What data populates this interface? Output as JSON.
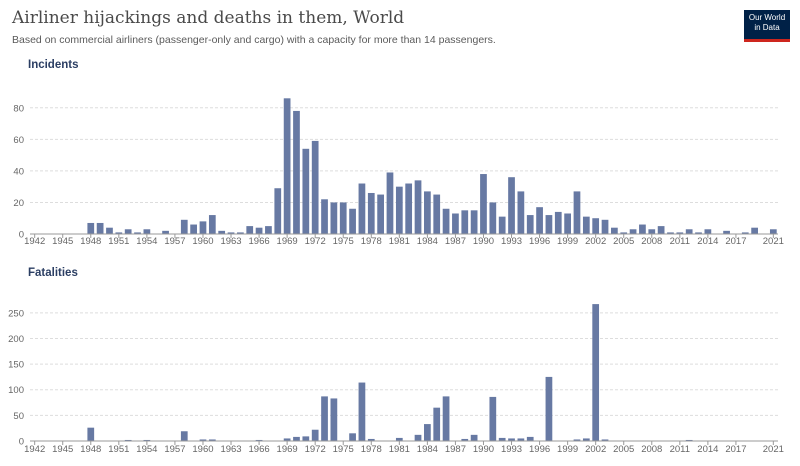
{
  "title": "Airliner hijackings and deaths in them, World",
  "subtitle": "Based on commercial airliners (passenger-only and cargo) with a capacity for more than 14 passengers.",
  "logo": {
    "line1": "Our World",
    "line2": "in Data"
  },
  "colors": {
    "bar": "#6779a3",
    "grid": "#dddddd",
    "axis": "#999999",
    "text": "#666666",
    "panel_title": "#2b3e63"
  },
  "chart_data": [
    {
      "type": "bar",
      "panel_title": "Incidents",
      "x": [
        1942,
        1943,
        1944,
        1945,
        1946,
        1947,
        1948,
        1949,
        1950,
        1951,
        1952,
        1953,
        1954,
        1955,
        1956,
        1957,
        1958,
        1959,
        1960,
        1961,
        1962,
        1963,
        1964,
        1965,
        1966,
        1967,
        1968,
        1969,
        1970,
        1971,
        1972,
        1973,
        1974,
        1975,
        1976,
        1977,
        1978,
        1979,
        1980,
        1981,
        1982,
        1983,
        1984,
        1985,
        1986,
        1987,
        1988,
        1989,
        1990,
        1991,
        1992,
        1993,
        1994,
        1995,
        1996,
        1997,
        1998,
        1999,
        2000,
        2001,
        2002,
        2003,
        2004,
        2005,
        2006,
        2007,
        2008,
        2009,
        2010,
        2011,
        2012,
        2013,
        2014,
        2015,
        2016,
        2017,
        2018,
        2019,
        2020,
        2021
      ],
      "values": [
        0,
        0,
        0,
        0,
        0,
        0,
        7,
        7,
        4,
        1,
        3,
        1,
        3,
        0,
        2,
        0,
        9,
        6,
        8,
        12,
        2,
        1,
        1,
        5,
        4,
        5,
        29,
        86,
        78,
        54,
        59,
        22,
        20,
        20,
        16,
        32,
        26,
        25,
        39,
        30,
        32,
        34,
        27,
        25,
        16,
        13,
        15,
        15,
        38,
        20,
        11,
        36,
        27,
        12,
        17,
        12,
        14,
        13,
        27,
        11,
        10,
        9,
        4,
        1,
        3,
        6,
        3,
        5,
        1,
        1,
        3,
        1,
        3,
        0,
        2,
        0,
        1,
        4,
        0,
        3
      ],
      "ylim": [
        0,
        90
      ],
      "yticks": [
        "0",
        "20",
        "40",
        "60",
        "80"
      ],
      "xticks": [
        "1942",
        "1945",
        "1948",
        "1951",
        "1954",
        "1957",
        "1960",
        "1963",
        "1966",
        "1969",
        "1972",
        "1975",
        "1978",
        "1981",
        "1984",
        "1987",
        "1990",
        "1993",
        "1996",
        "1999",
        "2002",
        "2005",
        "2008",
        "2011",
        "2014",
        "2017",
        "2021"
      ]
    },
    {
      "type": "bar",
      "panel_title": "Fatalities",
      "x": [
        1942,
        1943,
        1944,
        1945,
        1946,
        1947,
        1948,
        1949,
        1950,
        1951,
        1952,
        1953,
        1954,
        1955,
        1956,
        1957,
        1958,
        1959,
        1960,
        1961,
        1962,
        1963,
        1964,
        1965,
        1966,
        1967,
        1968,
        1969,
        1970,
        1971,
        1972,
        1973,
        1974,
        1975,
        1976,
        1977,
        1978,
        1979,
        1980,
        1981,
        1982,
        1983,
        1984,
        1985,
        1986,
        1987,
        1988,
        1989,
        1990,
        1991,
        1992,
        1993,
        1994,
        1995,
        1996,
        1997,
        1998,
        1999,
        2000,
        2001,
        2002,
        2003,
        2004,
        2005,
        2006,
        2007,
        2008,
        2009,
        2010,
        2011,
        2012,
        2013,
        2014,
        2015,
        2016,
        2017,
        2018,
        2019,
        2020,
        2021
      ],
      "values": [
        0,
        0,
        0,
        0,
        0,
        0,
        26,
        0,
        0,
        0,
        2,
        0,
        2,
        0,
        0,
        0,
        19,
        0,
        3,
        3,
        0,
        0,
        0,
        0,
        2,
        0,
        0,
        5,
        8,
        9,
        22,
        87,
        83,
        0,
        15,
        114,
        4,
        0,
        0,
        6,
        0,
        12,
        33,
        65,
        87,
        0,
        4,
        12,
        0,
        86,
        6,
        5,
        5,
        8,
        0,
        125,
        0,
        0,
        3,
        5,
        267,
        3,
        0,
        0,
        0,
        0,
        0,
        0,
        0,
        0,
        2,
        0,
        0,
        0,
        0,
        0,
        0,
        0,
        0,
        0
      ],
      "ylim": [
        0,
        275
      ],
      "yticks": [
        "0",
        "50",
        "100",
        "150",
        "200",
        "250"
      ],
      "xticks": [
        "1942",
        "1945",
        "1948",
        "1951",
        "1954",
        "1957",
        "1960",
        "1963",
        "1966",
        "1969",
        "1972",
        "1975",
        "1978",
        "1981",
        "1984",
        "1987",
        "1990",
        "1993",
        "1996",
        "1999",
        "2002",
        "2005",
        "2008",
        "2011",
        "2014",
        "2017",
        "2021"
      ]
    }
  ]
}
